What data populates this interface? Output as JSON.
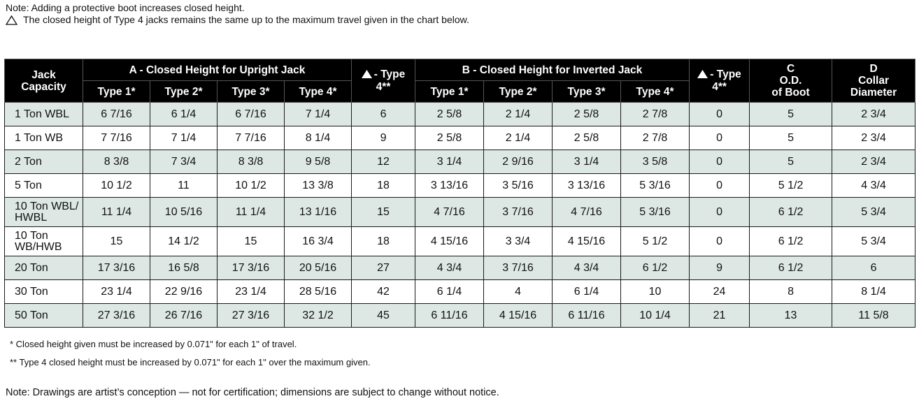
{
  "notes": {
    "line1": "Note:   Adding a protective boot increases closed height.",
    "line2": "The closed height of Type 4 jacks remains the same up to the maximum travel given in the chart below."
  },
  "header": {
    "jack_capacity": [
      "Jack",
      "Capacity"
    ],
    "group_a": "A - Closed Height for Upright Jack",
    "group_b": "B - Closed Height for Inverted Jack",
    "type_max": [
      "- Type",
      "4**"
    ],
    "col_c": [
      "C",
      "O.D.",
      "of Boot"
    ],
    "col_d": [
      "D",
      "Collar",
      "Diameter"
    ],
    "types": [
      "Type 1*",
      "Type 2*",
      "Type 3*",
      "Type 4*"
    ]
  },
  "rows": [
    {
      "capacity": [
        "1 Ton WBL"
      ],
      "a": [
        "6 7/16",
        "6 1/4",
        "6 7/16",
        "7 1/4"
      ],
      "a_max": "6",
      "b": [
        "2 5/8",
        "2 1/4",
        "2 5/8",
        "2 7/8"
      ],
      "b_max": "0",
      "c": "5",
      "d": "2 3/4"
    },
    {
      "capacity": [
        "1 Ton WB"
      ],
      "a": [
        "7 7/16",
        "7 1/4",
        "7 7/16",
        "8 1/4"
      ],
      "a_max": "9",
      "b": [
        "2 5/8",
        "2 1/4",
        "2 5/8",
        "2 7/8"
      ],
      "b_max": "0",
      "c": "5",
      "d": "2 3/4"
    },
    {
      "capacity": [
        "2 Ton"
      ],
      "a": [
        "8 3/8",
        "7 3/4",
        "8 3/8",
        "9 5/8"
      ],
      "a_max": "12",
      "b": [
        "3 1/4",
        "2 9/16",
        "3 1/4",
        "3 5/8"
      ],
      "b_max": "0",
      "c": "5",
      "d": "2 3/4"
    },
    {
      "capacity": [
        "5 Ton"
      ],
      "a": [
        "10 1/2",
        "11",
        "10 1/2",
        "13 3/8"
      ],
      "a_max": "18",
      "b": [
        "3 13/16",
        "3 5/16",
        "3 13/16",
        "5 3/16"
      ],
      "b_max": "0",
      "c": "5 1/2",
      "d": "4 3/4"
    },
    {
      "capacity": [
        "10 Ton WBL/",
        "HWBL"
      ],
      "a": [
        "11 1/4",
        "10 5/16",
        "11 1/4",
        "13 1/16"
      ],
      "a_max": "15",
      "b": [
        "4 7/16",
        "3 7/16",
        "4 7/16",
        "5 3/16"
      ],
      "b_max": "0",
      "c": "6 1/2",
      "d": "5 3/4"
    },
    {
      "capacity": [
        "10 Ton",
        "WB/HWB"
      ],
      "a": [
        "15",
        "14 1/2",
        "15",
        "16 3/4"
      ],
      "a_max": "18",
      "b": [
        "4 15/16",
        "3 3/4",
        "4 15/16",
        "5 1/2"
      ],
      "b_max": "0",
      "c": "6 1/2",
      "d": "5 3/4"
    },
    {
      "capacity": [
        "20 Ton"
      ],
      "a": [
        "17 3/16",
        "16 5/8",
        "17 3/16",
        "20 5/16"
      ],
      "a_max": "27",
      "b": [
        "4 3/4",
        "3 7/16",
        "4 3/4",
        "6 1/2"
      ],
      "b_max": "9",
      "c": "6 1/2",
      "d": "6"
    },
    {
      "capacity": [
        "30 Ton"
      ],
      "a": [
        "23 1/4",
        "22 9/16",
        "23 1/4",
        "28 5/16"
      ],
      "a_max": "42",
      "b": [
        "6 1/4",
        "4",
        "6 1/4",
        "10"
      ],
      "b_max": "24",
      "c": "8",
      "d": "8 1/4"
    },
    {
      "capacity": [
        "50 Ton"
      ],
      "a": [
        "27 3/16",
        "26 7/16",
        "27 3/16",
        "32 1/2"
      ],
      "a_max": "45",
      "b": [
        "6 11/16",
        "4 15/16",
        "6 11/16",
        "10 1/4"
      ],
      "b_max": "21",
      "c": "13",
      "d": "11 5/8"
    }
  ],
  "footnotes": {
    "single": "*   Closed height given must be increased by 0.071\" for each 1\" of travel.",
    "double": "** Type 4 closed height must be increased by 0.071\" for each 1\" over the maximum given."
  },
  "final_note": "Note: Drawings are artist’s conception — not for certification; dimensions are subject to change without notice."
}
